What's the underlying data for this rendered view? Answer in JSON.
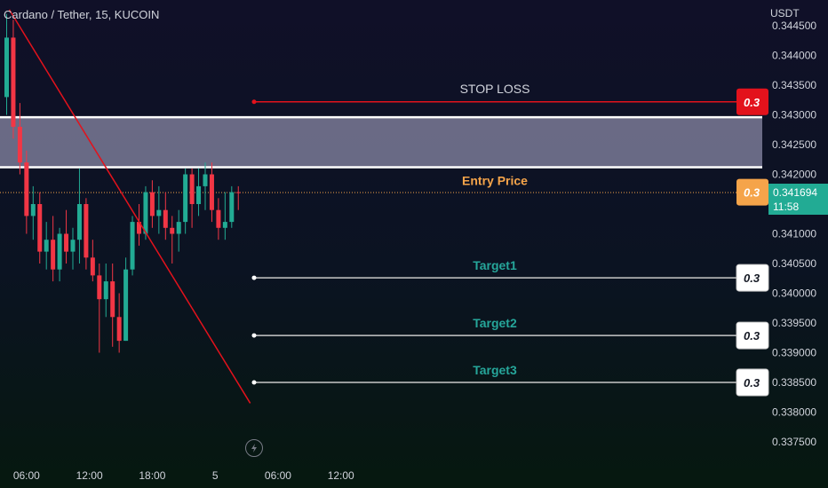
{
  "header": {
    "symbol_title": "Cardano / Tether, 15, KUCOIN",
    "currency": "USDT"
  },
  "price_tag": {
    "price": "0.341694",
    "countdown": "11:58"
  },
  "icons": {
    "replay": "lightning-icon"
  },
  "colors": {
    "up": "#22ab94",
    "down": "#f23645",
    "stop_loss": "#e3121c",
    "entry": "#f5a44a",
    "target_text": "#26a69a",
    "trend": "#e3121c",
    "zone": "#7a7a96"
  },
  "annotations": {
    "stop_loss": {
      "label": "STOP LOSS",
      "badge": "0.3",
      "price": 0.34322
    },
    "entry": {
      "label": "Entry Price",
      "badge": "0.3",
      "price": 0.3417
    },
    "targets": [
      {
        "label": "Target1",
        "badge": "0.3",
        "price": 0.34026
      },
      {
        "label": "Target2",
        "badge": "0.3",
        "price": 0.33929
      },
      {
        "label": "Target3",
        "badge": "0.3",
        "price": 0.3385
      }
    ],
    "resistance_zone": {
      "top": 0.34296,
      "bottom": 0.34212
    },
    "trend_line": {
      "from": {
        "time": 0.4,
        "price": 0.34477
      },
      "to": {
        "time": 36.8,
        "price": 0.33815
      }
    }
  },
  "chart_data": {
    "type": "candlestick",
    "title": "Cardano / Tether, 15, KUCOIN",
    "ylabel": "USDT",
    "y_ticks": [
      0.3375,
      0.338,
      0.3385,
      0.339,
      0.3395,
      0.34,
      0.3405,
      0.341,
      0.3415,
      0.342,
      0.3425,
      0.343,
      0.3435,
      0.344,
      0.3445
    ],
    "y_tick_labels": [
      "0.337500",
      "0.338000",
      "0.338500",
      "0.339000",
      "0.339500",
      "0.340000",
      "0.340500",
      "0.341000",
      "0.341500",
      "0.342000",
      "0.342500",
      "0.343000",
      "0.343500",
      "0.344000",
      "0.344500"
    ],
    "x_ticks": [
      3,
      12.5,
      22,
      31.5,
      41,
      50.5
    ],
    "x_tick_labels": [
      "06:00",
      "12:00",
      "18:00",
      "5",
      "06:00",
      "12:00"
    ],
    "ylim": [
      0.33725,
      0.3447
    ],
    "last_price": 0.341694,
    "candles": [
      {
        "o": 0.3433,
        "h": 0.3447,
        "l": 0.343,
        "c": 0.3443
      },
      {
        "o": 0.3443,
        "h": 0.3446,
        "l": 0.3426,
        "c": 0.3428
      },
      {
        "o": 0.3428,
        "h": 0.3432,
        "l": 0.342,
        "c": 0.3422
      },
      {
        "o": 0.3422,
        "h": 0.3424,
        "l": 0.341,
        "c": 0.3413
      },
      {
        "o": 0.3413,
        "h": 0.3418,
        "l": 0.3409,
        "c": 0.3415
      },
      {
        "o": 0.3415,
        "h": 0.3417,
        "l": 0.3405,
        "c": 0.3407
      },
      {
        "o": 0.3407,
        "h": 0.3412,
        "l": 0.3404,
        "c": 0.3409
      },
      {
        "o": 0.3409,
        "h": 0.3413,
        "l": 0.3402,
        "c": 0.3404
      },
      {
        "o": 0.3404,
        "h": 0.3411,
        "l": 0.3402,
        "c": 0.341
      },
      {
        "o": 0.341,
        "h": 0.3414,
        "l": 0.3405,
        "c": 0.3407
      },
      {
        "o": 0.3407,
        "h": 0.3411,
        "l": 0.3404,
        "c": 0.3409
      },
      {
        "o": 0.3409,
        "h": 0.3421,
        "l": 0.3405,
        "c": 0.3415
      },
      {
        "o": 0.3415,
        "h": 0.3416,
        "l": 0.3404,
        "c": 0.3406
      },
      {
        "o": 0.3406,
        "h": 0.3409,
        "l": 0.3402,
        "c": 0.3403
      },
      {
        "o": 0.3403,
        "h": 0.3405,
        "l": 0.339,
        "c": 0.3399
      },
      {
        "o": 0.3399,
        "h": 0.3405,
        "l": 0.3396,
        "c": 0.3402
      },
      {
        "o": 0.3402,
        "h": 0.3405,
        "l": 0.3391,
        "c": 0.3396
      },
      {
        "o": 0.3396,
        "h": 0.34,
        "l": 0.339,
        "c": 0.3392
      },
      {
        "o": 0.3392,
        "h": 0.3406,
        "l": 0.3392,
        "c": 0.3404
      },
      {
        "o": 0.3404,
        "h": 0.3413,
        "l": 0.3403,
        "c": 0.3412
      },
      {
        "o": 0.3412,
        "h": 0.3415,
        "l": 0.3408,
        "c": 0.341
      },
      {
        "o": 0.341,
        "h": 0.3418,
        "l": 0.3409,
        "c": 0.3417
      },
      {
        "o": 0.3417,
        "h": 0.3419,
        "l": 0.3411,
        "c": 0.3413
      },
      {
        "o": 0.3413,
        "h": 0.3418,
        "l": 0.341,
        "c": 0.3414
      },
      {
        "o": 0.3414,
        "h": 0.3417,
        "l": 0.3409,
        "c": 0.3411
      },
      {
        "o": 0.3411,
        "h": 0.3413,
        "l": 0.3405,
        "c": 0.341
      },
      {
        "o": 0.341,
        "h": 0.3414,
        "l": 0.3407,
        "c": 0.3412
      },
      {
        "o": 0.3412,
        "h": 0.3421,
        "l": 0.341,
        "c": 0.342
      },
      {
        "o": 0.342,
        "h": 0.3421,
        "l": 0.3411,
        "c": 0.3415
      },
      {
        "o": 0.3415,
        "h": 0.3421,
        "l": 0.3413,
        "c": 0.3418
      },
      {
        "o": 0.3418,
        "h": 0.3422,
        "l": 0.3414,
        "c": 0.342
      },
      {
        "o": 0.342,
        "h": 0.3422,
        "l": 0.3412,
        "c": 0.3414
      },
      {
        "o": 0.3414,
        "h": 0.3416,
        "l": 0.3409,
        "c": 0.3411
      },
      {
        "o": 0.3411,
        "h": 0.3417,
        "l": 0.3409,
        "c": 0.3412
      },
      {
        "o": 0.3412,
        "h": 0.3418,
        "l": 0.3411,
        "c": 0.3417
      },
      {
        "o": 0.3417,
        "h": 0.3418,
        "l": 0.3414,
        "c": 0.34169
      }
    ]
  }
}
